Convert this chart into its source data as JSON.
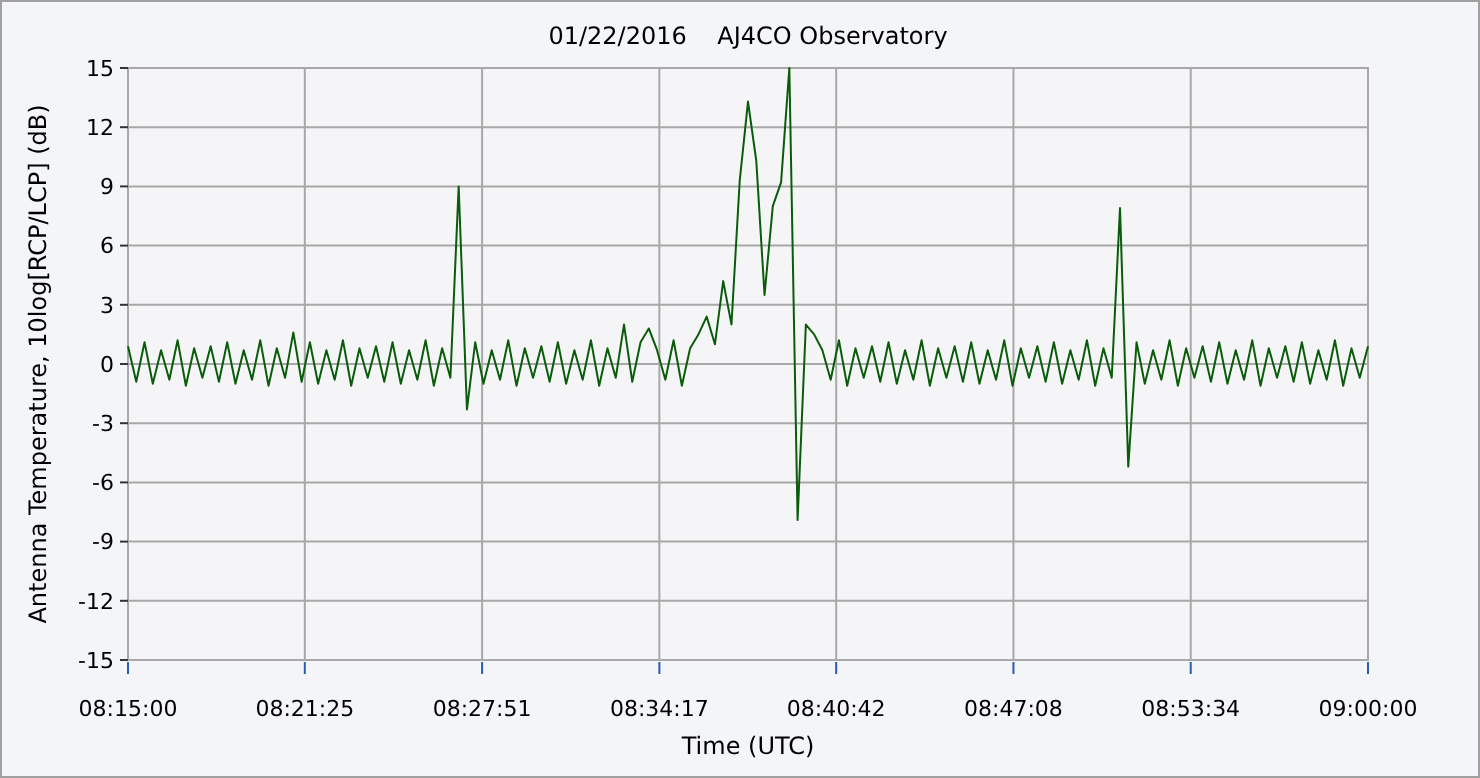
{
  "chart_data": {
    "type": "line",
    "title": "01/22/2016    AJ4CO Observatory",
    "xlabel": "Time (UTC)",
    "ylabel": "Antenna Temperature, 10log[RCP/LCP] (dB)",
    "xlim": [
      8.25,
      9
    ],
    "xticks": [
      {
        "value": 8.25,
        "label": "08:15:00"
      },
      {
        "value": 8.356944,
        "label": "08:21:25"
      },
      {
        "value": 8.464167,
        "label": "08:27:51"
      },
      {
        "value": 8.571389,
        "label": "08:34:17"
      },
      {
        "value": 8.678333,
        "label": "08:40:42"
      },
      {
        "value": 8.785556,
        "label": "08:47:08"
      },
      {
        "value": 8.892778,
        "label": "08:53:34"
      },
      {
        "value": 9,
        "label": "09:00:00"
      }
    ],
    "ylim": [
      -15,
      15
    ],
    "yticks": [
      -15,
      -12,
      -9,
      -6,
      -3,
      0,
      3,
      6,
      9,
      12,
      15
    ],
    "grid": true,
    "x": [
      8.25,
      8.255,
      8.26,
      8.265,
      8.27,
      8.275,
      8.28,
      8.285,
      8.29,
      8.295,
      8.3,
      8.305,
      8.31,
      8.315,
      8.32,
      8.325,
      8.33,
      8.335,
      8.34,
      8.345,
      8.35,
      8.355,
      8.36,
      8.365,
      8.37,
      8.375,
      8.38,
      8.385,
      8.39,
      8.395,
      8.4,
      8.405,
      8.41,
      8.415,
      8.42,
      8.425,
      8.43,
      8.435,
      8.44,
      8.445,
      8.45,
      8.455,
      8.46,
      8.465,
      8.47,
      8.475,
      8.48,
      8.485,
      8.49,
      8.495,
      8.5,
      8.505,
      8.51,
      8.515,
      8.52,
      8.525,
      8.53,
      8.535,
      8.54,
      8.545,
      8.55,
      8.555,
      8.56,
      8.565,
      8.57,
      8.575,
      8.58,
      8.585,
      8.59,
      8.595,
      8.6,
      8.605,
      8.61,
      8.615,
      8.62,
      8.625,
      8.63,
      8.635,
      8.64,
      8.645,
      8.65,
      8.655,
      8.66,
      8.665,
      8.67,
      8.675,
      8.68,
      8.685,
      8.69,
      8.695,
      8.7,
      8.705,
      8.71,
      8.715,
      8.72,
      8.725,
      8.73,
      8.735,
      8.74,
      8.745,
      8.75,
      8.755,
      8.76,
      8.765,
      8.77,
      8.775,
      8.78,
      8.785,
      8.79,
      8.795,
      8.8,
      8.805,
      8.81,
      8.815,
      8.82,
      8.825,
      8.83,
      8.835,
      8.84,
      8.845,
      8.85,
      8.855,
      8.86,
      8.865,
      8.87,
      8.875,
      8.88,
      8.885,
      8.89,
      8.895,
      8.9,
      8.905,
      8.91,
      8.915,
      8.92,
      8.925,
      8.93,
      8.935,
      8.94,
      8.945,
      8.95,
      8.955,
      8.96,
      8.965,
      8.97,
      8.975,
      8.98,
      8.985,
      8.99,
      8.995,
      9
    ],
    "series": [
      {
        "color": "#0a5c0a",
        "values": [
          0.9,
          -0.9,
          1.1,
          -1.0,
          0.7,
          -0.8,
          1.2,
          -1.1,
          0.8,
          -0.7,
          0.9,
          -0.9,
          1.1,
          -1.0,
          0.7,
          -0.8,
          1.2,
          -1.1,
          0.8,
          -0.7,
          1.6,
          -0.9,
          1.1,
          -1.0,
          0.7,
          -0.8,
          1.2,
          -1.1,
          0.8,
          -0.7,
          0.9,
          -0.9,
          1.1,
          -1.0,
          0.7,
          -0.8,
          1.2,
          -1.1,
          0.8,
          -0.7,
          9.0,
          -2.3,
          1.1,
          -1.0,
          0.7,
          -0.8,
          1.2,
          -1.1,
          0.8,
          -0.7,
          0.9,
          -0.9,
          1.1,
          -1.0,
          0.7,
          -0.8,
          1.2,
          -1.1,
          0.8,
          -0.7,
          2.0,
          -0.9,
          1.1,
          1.8,
          0.7,
          -0.8,
          1.2,
          -1.1,
          0.8,
          1.5,
          2.4,
          1.0,
          4.2,
          2.0,
          9.3,
          13.3,
          10.3,
          3.5,
          8.0,
          9.2,
          15,
          -7.9,
          2.0,
          1.5,
          0.7,
          -0.8,
          1.2,
          -1.1,
          0.8,
          -0.7,
          0.9,
          -0.9,
          1.1,
          -1.0,
          0.7,
          -0.8,
          1.2,
          -1.1,
          0.8,
          -0.7,
          0.9,
          -0.9,
          1.1,
          -1.0,
          0.7,
          -0.8,
          1.2,
          -1.1,
          0.8,
          -0.7,
          0.9,
          -0.9,
          1.1,
          -1.0,
          0.7,
          -0.8,
          1.2,
          -1.1,
          0.8,
          -0.7,
          7.9,
          -5.2,
          1.1,
          -1.0,
          0.7,
          -0.8,
          1.2,
          -1.1,
          0.8,
          -0.7,
          0.9,
          -0.9,
          1.1,
          -1.0,
          0.7,
          -0.8,
          1.2,
          -1.1,
          0.8,
          -0.7,
          0.9,
          -0.9,
          1.1,
          -1.0,
          0.7,
          -0.8,
          1.2,
          -1.1,
          0.8,
          -0.7,
          0.9
        ]
      }
    ],
    "line_style": "solid"
  }
}
